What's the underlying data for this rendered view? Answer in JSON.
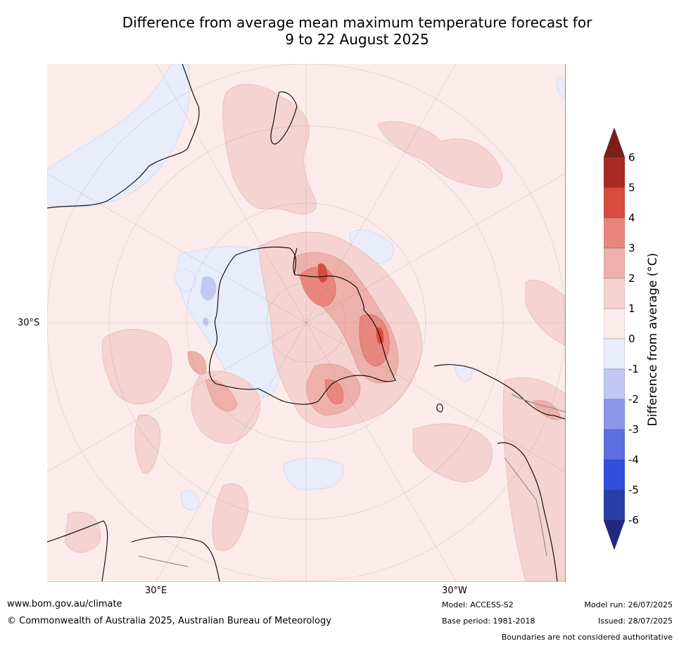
{
  "title": {
    "line1": "Difference from average mean maximum temperature forecast for",
    "line2": "9 to 22 August 2025"
  },
  "map": {
    "lat_label": "30°S",
    "lon_labels": [
      "30°E",
      "30°W"
    ]
  },
  "colorbar": {
    "title": "Difference from average (°C)",
    "ticks": [
      "6",
      "5",
      "4",
      "3",
      "2",
      "1",
      "0",
      "-1",
      "-2",
      "-3",
      "-4",
      "-5",
      "-6"
    ],
    "colors": [
      "#7a1f1a",
      "#a82a23",
      "#d94b3f",
      "#e8857d",
      "#eeb0aa",
      "#f4d3d0",
      "#fbeceb",
      "#e8ecfb",
      "#c1c8f2",
      "#8c98ea",
      "#5a6ee0",
      "#2f4fdc",
      "#283da8",
      "#1e2a80"
    ]
  },
  "footer": {
    "website": "www.bom.gov.au/climate",
    "copyright": "© Commonwealth of Australia 2025, Australian Bureau of Meteorology",
    "model": "Model: ACCESS-S2",
    "base_period": "Base period: 1981-2018",
    "model_run": "Model run: 26/07/2025",
    "issued": "Issued: 28/07/2025",
    "disclaimer": "Boundaries are not considered authoritative"
  }
}
